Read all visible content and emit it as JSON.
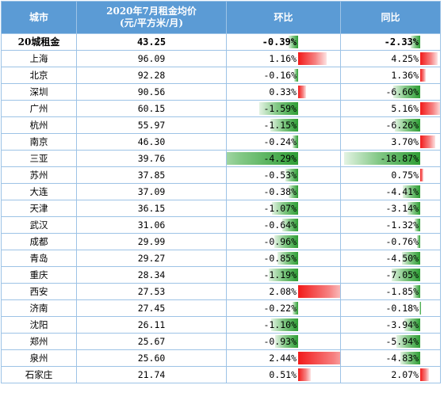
{
  "header": {
    "city": "城市",
    "rent_line1": "2020年7月租金均价",
    "rent_line2": "(元/平方米/月)",
    "mom": "环比",
    "yoy": "同比"
  },
  "summary": {
    "city": "20城租金",
    "rent": "43.25",
    "mom": "-0.39%",
    "yoy": "-2.33%"
  },
  "rows": [
    {
      "city": "上海",
      "rent": "96.09",
      "mom": "1.16%",
      "yoy": "4.25%"
    },
    {
      "city": "北京",
      "rent": "92.28",
      "mom": "-0.16%",
      "yoy": "1.36%"
    },
    {
      "city": "深圳",
      "rent": "90.56",
      "mom": "0.33%",
      "yoy": "-6.60%"
    },
    {
      "city": "广州",
      "rent": "60.15",
      "mom": "-1.59%",
      "yoy": "5.16%"
    },
    {
      "city": "杭州",
      "rent": "55.97",
      "mom": "-1.15%",
      "yoy": "-6.26%"
    },
    {
      "city": "南京",
      "rent": "46.30",
      "mom": "-0.24%",
      "yoy": "3.70%"
    },
    {
      "city": "三亚",
      "rent": "39.76",
      "mom": "-4.29%",
      "yoy": "-18.87%"
    },
    {
      "city": "苏州",
      "rent": "37.85",
      "mom": "-0.53%",
      "yoy": "0.75%"
    },
    {
      "city": "大连",
      "rent": "37.09",
      "mom": "-0.38%",
      "yoy": "-4.41%"
    },
    {
      "city": "天津",
      "rent": "36.15",
      "mom": "-1.07%",
      "yoy": "-3.14%"
    },
    {
      "city": "武汉",
      "rent": "31.06",
      "mom": "-0.64%",
      "yoy": "-1.32%"
    },
    {
      "city": "成都",
      "rent": "29.99",
      "mom": "-0.96%",
      "yoy": "-0.76%"
    },
    {
      "city": "青岛",
      "rent": "29.27",
      "mom": "-0.85%",
      "yoy": "-4.50%"
    },
    {
      "city": "重庆",
      "rent": "28.34",
      "mom": "-1.19%",
      "yoy": "-7.05%"
    },
    {
      "city": "西安",
      "rent": "27.53",
      "mom": "2.08%",
      "yoy": "-1.85%"
    },
    {
      "city": "济南",
      "rent": "27.45",
      "mom": "-0.22%",
      "yoy": "-0.18%"
    },
    {
      "city": "沈阳",
      "rent": "26.11",
      "mom": "-1.10%",
      "yoy": "-3.94%"
    },
    {
      "city": "郑州",
      "rent": "25.67",
      "mom": "-0.93%",
      "yoy": "-5.94%"
    },
    {
      "city": "泉州",
      "rent": "25.60",
      "mom": "2.44%",
      "yoy": "-4.83%"
    },
    {
      "city": "石家庄",
      "rent": "21.74",
      "mom": "0.51%",
      "yoy": "2.07%"
    }
  ],
  "data_bar_colors": {
    "positive": "#f21a1a",
    "negative": "#2e9e35"
  },
  "header_color": "#5b9bd5"
}
